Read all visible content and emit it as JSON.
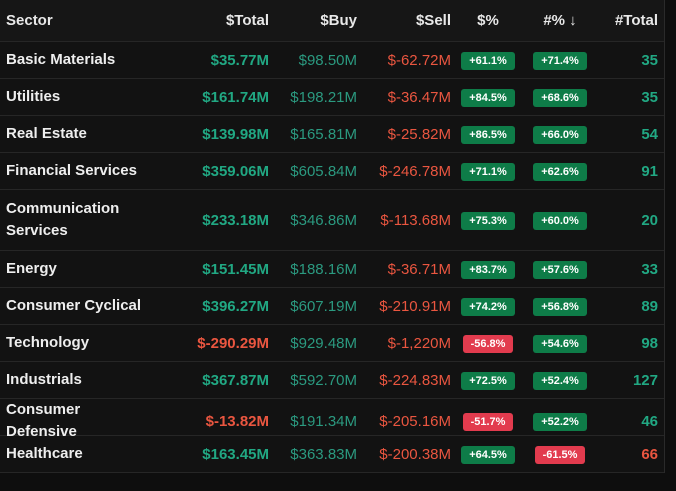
{
  "table": {
    "columns": [
      "Sector",
      "$Total",
      "$Buy",
      "$Sell",
      "$%",
      "#% ↓",
      "#Total"
    ],
    "rows": [
      [
        "Basic Materials",
        "$35.77M",
        "$98.50M",
        "$-62.72M",
        "+61.1%",
        "+71.4%",
        "35"
      ],
      [
        "Utilities",
        "$161.74M",
        "$198.21M",
        "$-36.47M",
        "+84.5%",
        "+68.6%",
        "35"
      ],
      [
        "Real Estate",
        "$139.98M",
        "$165.81M",
        "$-25.82M",
        "+86.5%",
        "+66.0%",
        "54"
      ],
      [
        "Financial Services",
        "$359.06M",
        "$605.84M",
        "$-246.78M",
        "+71.1%",
        "+62.6%",
        "91"
      ],
      [
        "Communication Services",
        "$233.18M",
        "$346.86M",
        "$-113.68M",
        "+75.3%",
        "+60.0%",
        "20"
      ],
      [
        "Energy",
        "$151.45M",
        "$188.16M",
        "$-36.71M",
        "+83.7%",
        "+57.6%",
        "33"
      ],
      [
        "Consumer Cyclical",
        "$396.27M",
        "$607.19M",
        "$-210.91M",
        "+74.2%",
        "+56.8%",
        "89"
      ],
      [
        "Technology",
        "$-290.29M",
        "$929.48M",
        "$-1,220M",
        "-56.8%",
        "+54.6%",
        "98"
      ],
      [
        "Industrials",
        "$367.87M",
        "$592.70M",
        "$-224.83M",
        "+72.5%",
        "+52.4%",
        "127"
      ],
      [
        "Consumer Defensive",
        "$-13.82M",
        "$191.34M",
        "$-205.16M",
        "-51.7%",
        "+52.2%",
        "46"
      ],
      [
        "Healthcare",
        "$163.45M",
        "$363.83M",
        "$-200.38M",
        "+64.5%",
        "-61.5%",
        "66"
      ]
    ]
  }
}
